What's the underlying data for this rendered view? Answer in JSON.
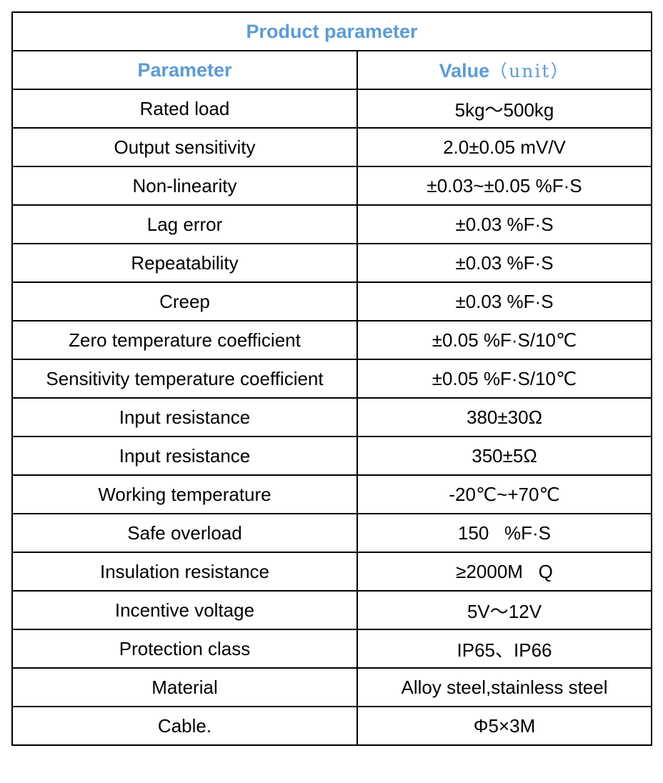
{
  "table": {
    "title": "Product parameter",
    "header": {
      "param": "Parameter",
      "value_main": "Value",
      "value_unit": "（unit）"
    },
    "rows": [
      {
        "param": "Rated load",
        "value": "5kg～500kg"
      },
      {
        "param": "Output sensitivity",
        "value": "2.0±0.05 mV/V"
      },
      {
        "param": "Non-linearity",
        "value": "±0.03~±0.05 %F·S"
      },
      {
        "param": "Lag error",
        "value": "±0.03 %F·S"
      },
      {
        "param": "Repeatability",
        "value": "±0.03 %F·S"
      },
      {
        "param": "Creep",
        "value": "±0.03 %F·S"
      },
      {
        "param": "Zero temperature coefficient",
        "value": "±0.05 %F·S/10℃"
      },
      {
        "param": "Sensitivity temperature coefficient",
        "value": "±0.05 %F·S/10℃"
      },
      {
        "param": "Input resistance",
        "value": "380±30Ω"
      },
      {
        "param": "Input resistance",
        "value": "350±5Ω"
      },
      {
        "param": "Working temperature",
        "value": "-20℃~+70℃"
      },
      {
        "param": "Safe overload",
        "value": "150   %F·S"
      },
      {
        "param": "Insulation resistance",
        "value": "≥2000M   Q"
      },
      {
        "param": "Incentive voltage",
        "value": "5V～12V"
      },
      {
        "param": "Protection class",
        "value": "IP65、IP66"
      },
      {
        "param": "Material",
        "value": "Alloy steel,stainless steel"
      },
      {
        "param": "Cable.",
        "value": "Φ5×3M"
      }
    ]
  }
}
